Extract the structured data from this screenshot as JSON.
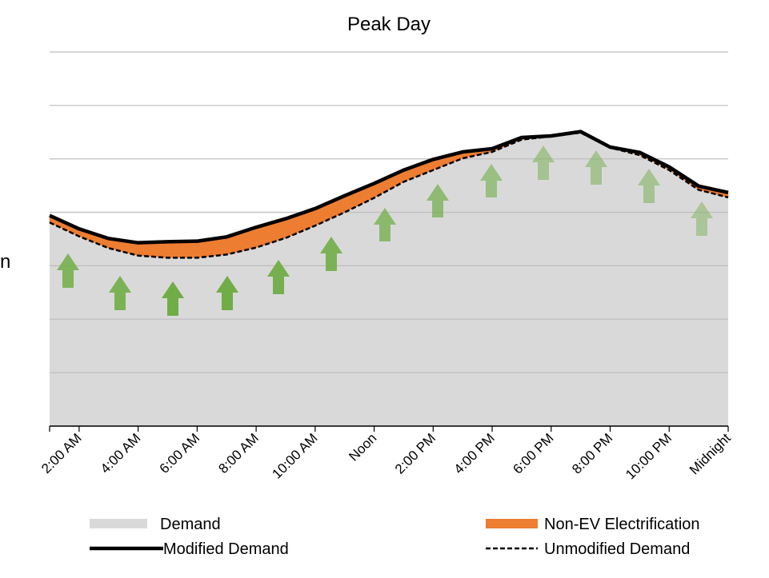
{
  "chart_data": {
    "type": "area",
    "title": "Peak Day",
    "ylabel": "n",
    "categories": [
      null,
      "2:00 AM",
      null,
      "4:00 AM",
      null,
      "6:00 AM",
      null,
      "8:00 AM",
      null,
      "10:00 AM",
      null,
      "Noon",
      null,
      "2:00 PM",
      null,
      "4:00 PM",
      null,
      "6:00 PM",
      null,
      "8:00 PM",
      null,
      "10:00 PM",
      null,
      "Midnight"
    ],
    "ylim": [
      0,
      7
    ],
    "yticks": [
      0,
      1,
      2,
      3,
      4,
      5,
      6,
      7
    ],
    "grid": true,
    "series": [
      {
        "name": "Demand",
        "color": "#d9d9d9",
        "values": [
          3.81,
          3.55,
          3.33,
          3.19,
          3.15,
          3.15,
          3.21,
          3.34,
          3.52,
          3.75,
          4.0,
          4.27,
          4.57,
          4.79,
          5.01,
          5.13,
          5.36,
          5.42,
          5.49,
          5.21,
          5.07,
          4.79,
          4.42,
          4.28
        ]
      },
      {
        "name": "Non-EV Electrification",
        "color": "#ed7d31",
        "values": [
          0.13,
          0.14,
          0.18,
          0.24,
          0.3,
          0.31,
          0.33,
          0.38,
          0.36,
          0.32,
          0.31,
          0.27,
          0.22,
          0.2,
          0.12,
          0.06,
          0.04,
          0.01,
          0.02,
          0.01,
          0.05,
          0.06,
          0.07,
          0.09
        ]
      },
      {
        "name": "Modified Demand",
        "color": "#000000",
        "values": [
          3.94,
          3.69,
          3.51,
          3.43,
          3.45,
          3.46,
          3.54,
          3.72,
          3.88,
          4.07,
          4.31,
          4.54,
          4.79,
          4.99,
          5.13,
          5.19,
          5.4,
          5.43,
          5.51,
          5.22,
          5.12,
          4.85,
          4.49,
          4.37
        ]
      },
      {
        "name": "Unmodified Demand",
        "color": "#000000",
        "values": [
          3.81,
          3.55,
          3.33,
          3.19,
          3.15,
          3.15,
          3.21,
          3.34,
          3.52,
          3.75,
          4.0,
          4.27,
          4.57,
          4.79,
          5.01,
          5.13,
          5.36,
          5.42,
          5.49,
          5.21,
          5.07,
          4.79,
          4.42,
          4.28
        ]
      }
    ]
  }
}
